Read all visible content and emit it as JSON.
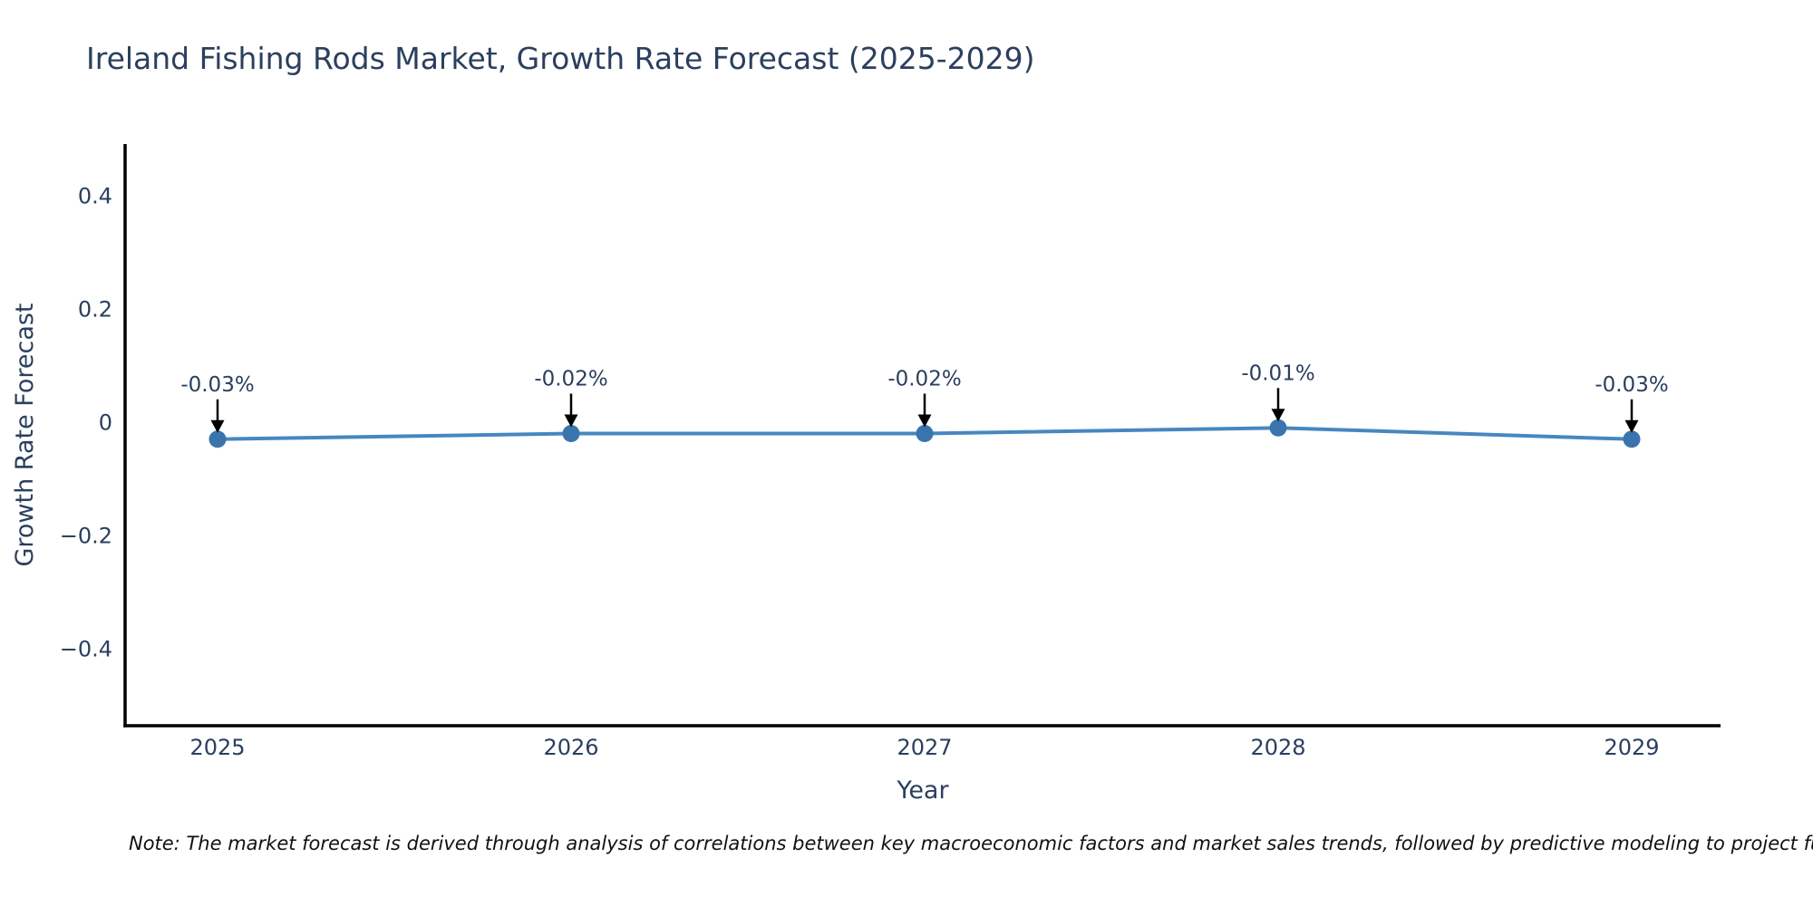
{
  "page": {
    "title": "Ireland Fishing Rods Market, Growth Rate Forecast (2025-2029)",
    "note": "Note: The market forecast is derived through analysis of correlations between key macroeconomic factors and market sales trends, followed by predictive modeling to project future sales."
  },
  "chart_data": {
    "type": "line",
    "title": "Ireland Fishing Rods Market, Growth Rate Forecast (2025-2029)",
    "xlabel": "Year",
    "ylabel": "Growth Rate Forecast",
    "categories": [
      "2025",
      "2026",
      "2027",
      "2028",
      "2029"
    ],
    "series": [
      {
        "name": "Growth Rate Forecast",
        "values": [
          -0.03,
          -0.02,
          -0.02,
          -0.01,
          -0.03
        ]
      }
    ],
    "point_labels": [
      "-0.03%",
      "-0.02%",
      "-0.02%",
      "-0.01%",
      "-0.03%"
    ],
    "ytick_values": [
      0.4,
      0.2,
      0,
      -0.2,
      -0.4
    ],
    "ytick_labels": [
      "0.4",
      "0.2",
      "0",
      "−0.2",
      "−0.4"
    ],
    "ylim": [
      -0.535,
      0.49
    ],
    "grid": false,
    "legend_position": "none",
    "annotation_arrows": true,
    "colors": {
      "line": "#4787c1",
      "marker": "#3a74ad",
      "axis": "#000000",
      "text": "#2a3f5f",
      "arrow": "#000000",
      "note_text": "#111111",
      "background": "#ffffff"
    }
  }
}
